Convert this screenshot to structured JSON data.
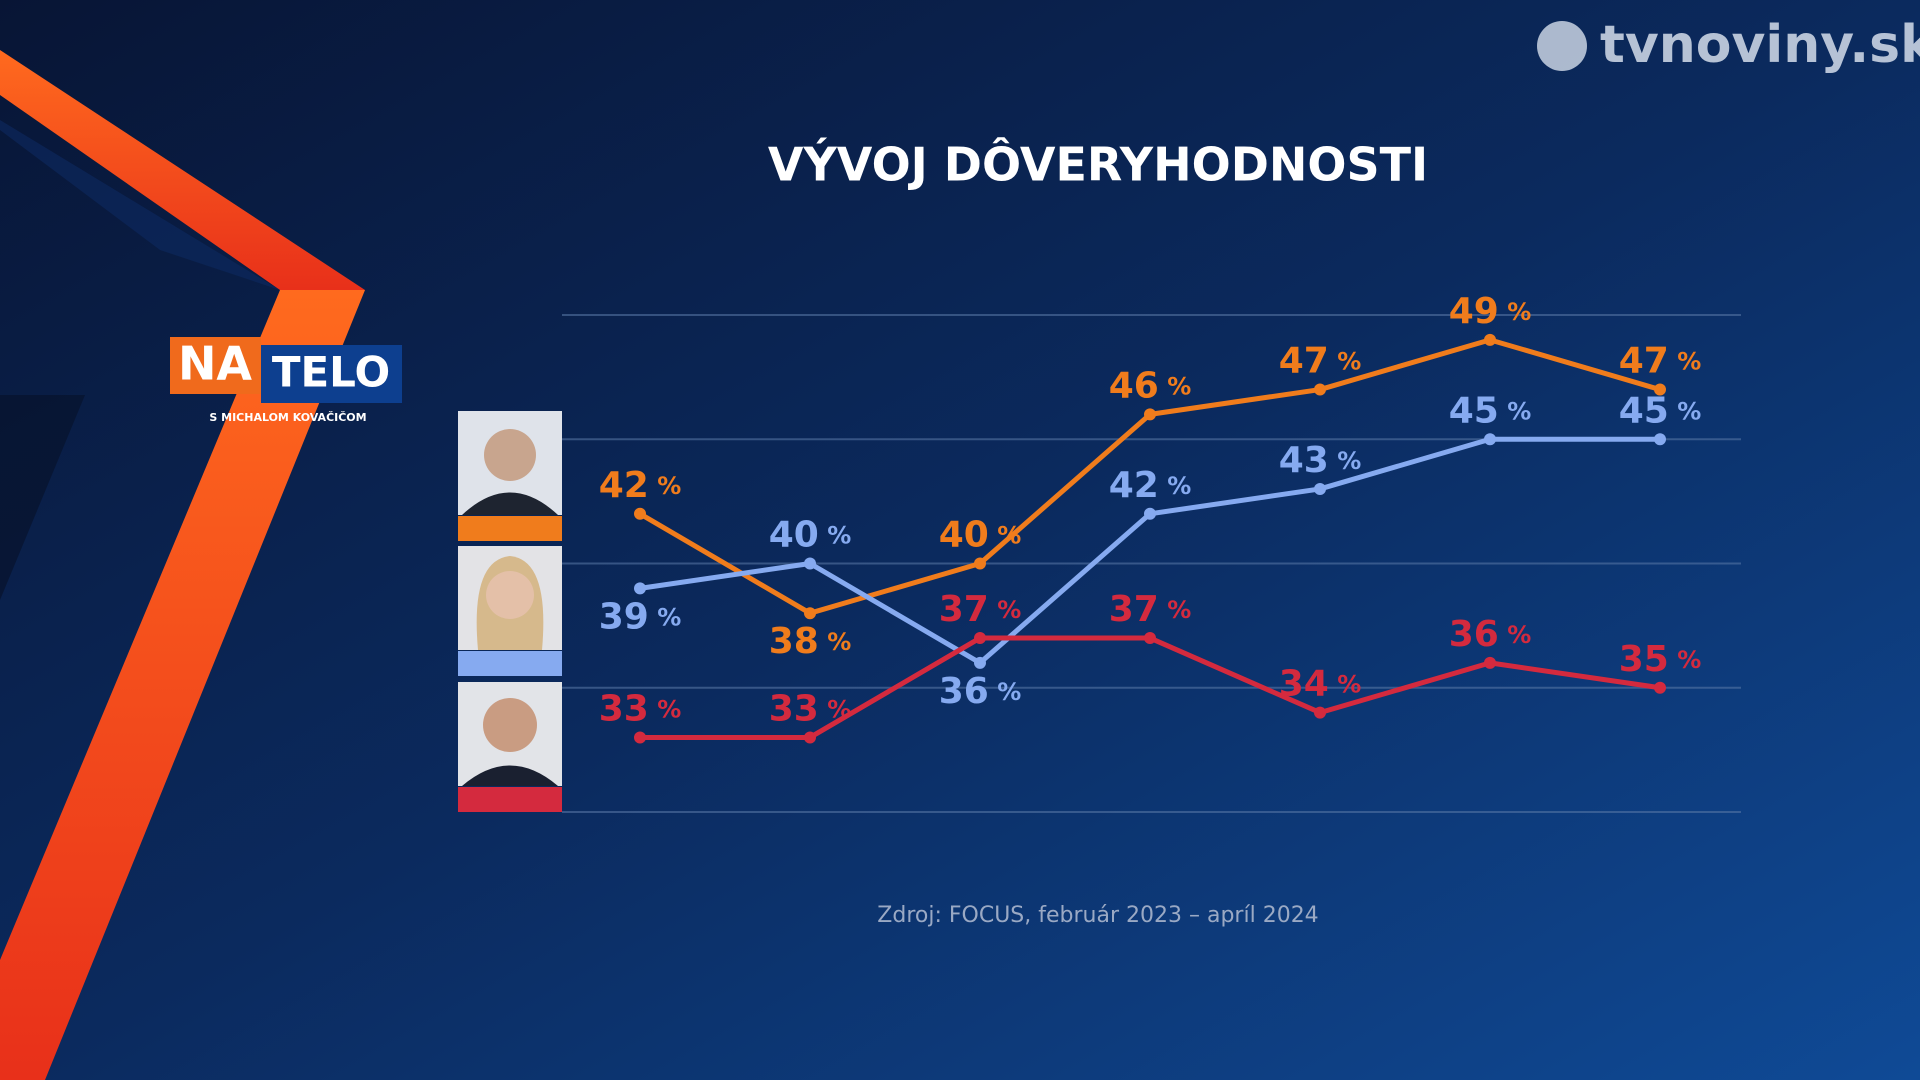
{
  "chart_data": {
    "type": "line",
    "title": "VÝVOJ DÔVERYHODNOSTI",
    "source": "Zdroj: FOCUS, február 2023 – apríl 2024",
    "categories": [
      null,
      null,
      null,
      null,
      null,
      null,
      null
    ],
    "series": [
      {
        "color": "#f07c1c",
        "values": [
          42,
          38,
          40,
          46,
          47,
          49,
          47
        ],
        "value_labels": [
          "42 %",
          "38 %",
          "40 %",
          "46 %",
          "47 %",
          "49 %",
          "47 %"
        ]
      },
      {
        "color": "#86aaf0",
        "values": [
          39,
          40,
          36,
          42,
          43,
          45,
          45
        ],
        "value_labels": [
          "39 %",
          "40 %",
          "36 %",
          "42 %",
          "43 %",
          "45 %",
          "45 %"
        ]
      },
      {
        "color": "#d42a3e",
        "values": [
          33,
          33,
          37,
          37,
          34,
          36,
          35
        ],
        "value_labels": [
          "33 %",
          "33 %",
          "37 %",
          "37 %",
          "34 %",
          "36 %",
          "35 %"
        ]
      }
    ],
    "ylim": [
      30,
      50
    ],
    "yticks": [
      30,
      35,
      40,
      45,
      50
    ],
    "grid": true
  },
  "logo": {
    "na": "NA",
    "telo": "TELO",
    "subtitle": "S MICHALOM KOVAČIČOM"
  },
  "channel": "tvnoviny.sk"
}
